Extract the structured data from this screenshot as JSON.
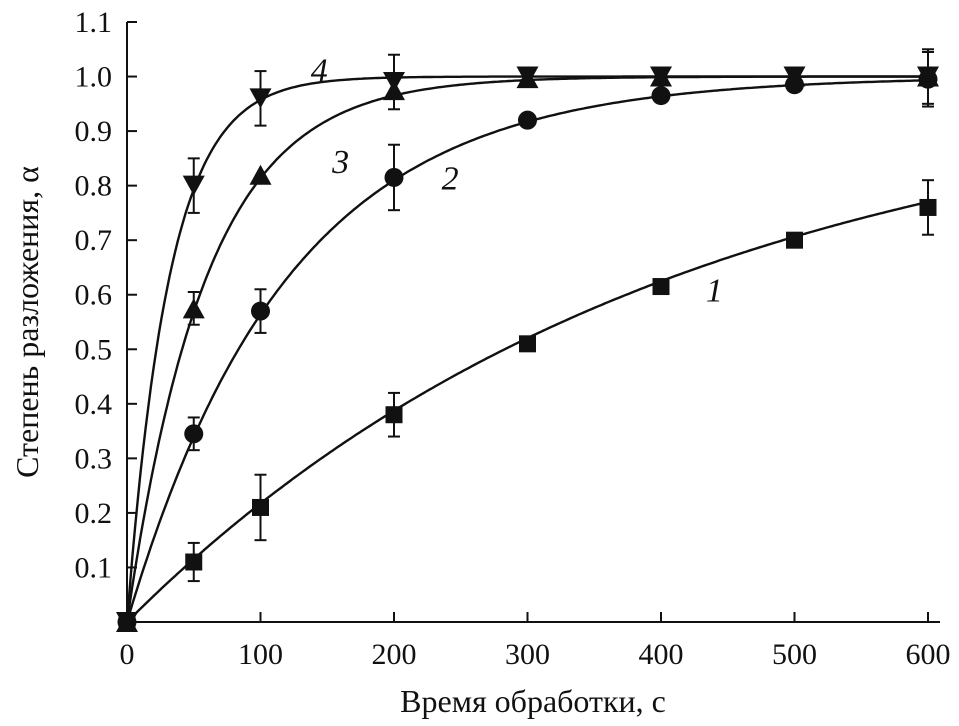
{
  "chart_data": {
    "type": "scatter",
    "xlabel": "Время обработки, с",
    "ylabel": "Степень разложения, α",
    "xlim": [
      0,
      600
    ],
    "ylim": [
      0,
      1.1
    ],
    "xticks": [
      0,
      100,
      200,
      300,
      400,
      500,
      600
    ],
    "xtick_labels": [
      "0",
      "100",
      "200",
      "300",
      "400",
      "500",
      "600"
    ],
    "yticks": [
      0.1,
      0.2,
      0.3,
      0.4,
      0.5,
      0.6,
      0.7,
      0.8,
      0.9,
      1.0,
      1.1
    ],
    "ytick_labels": [
      "0.1",
      "0.2",
      "0.3",
      "0.4",
      "0.5",
      "0.6",
      "0.7",
      "0.8",
      "0.9",
      "1.0",
      "1.1"
    ],
    "origin_label": "0",
    "grid": false,
    "legend": "none",
    "series": [
      {
        "label": "1",
        "marker": "square",
        "x": [
          0,
          50,
          100,
          200,
          300,
          400,
          500,
          600
        ],
        "y": [
          0.0,
          0.11,
          0.21,
          0.38,
          0.51,
          0.615,
          0.7,
          0.76
        ],
        "err": [
          0,
          0.035,
          0.06,
          0.04,
          0,
          0,
          0,
          0.05
        ],
        "fit_k": 0.00245,
        "label_pos": {
          "x": 440,
          "y": 0.61
        }
      },
      {
        "label": "2",
        "marker": "circle",
        "x": [
          0,
          50,
          100,
          200,
          300,
          400,
          500,
          600
        ],
        "y": [
          0.0,
          0.345,
          0.57,
          0.815,
          0.92,
          0.965,
          0.985,
          0.995
        ],
        "err": [
          0,
          0.03,
          0.04,
          0.06,
          0,
          0,
          0,
          0.05
        ],
        "fit_k": 0.0083,
        "label_pos": {
          "x": 242,
          "y": 0.815
        }
      },
      {
        "label": "3",
        "marker": "triangle-up",
        "x": [
          0,
          50,
          100,
          200,
          300,
          400,
          500,
          600
        ],
        "y": [
          0.0,
          0.575,
          0.82,
          0.975,
          0.997,
          1.0,
          1.0,
          1.0
        ],
        "err": [
          0,
          0.03,
          0,
          0,
          0,
          0,
          0,
          0
        ],
        "fit_k": 0.0168,
        "label_pos": {
          "x": 160,
          "y": 0.845
        }
      },
      {
        "label": "4",
        "marker": "triangle-down",
        "x": [
          0,
          50,
          100,
          200,
          300,
          400,
          500,
          600
        ],
        "y": [
          0.0,
          0.8,
          0.96,
          0.99,
          1.0,
          1.0,
          1.0,
          1.0
        ],
        "err": [
          0,
          0.05,
          0.05,
          0.05,
          0,
          0,
          0,
          0.05
        ],
        "fit_k": 0.0315,
        "label_pos": {
          "x": 144,
          "y": 1.013
        }
      }
    ]
  }
}
